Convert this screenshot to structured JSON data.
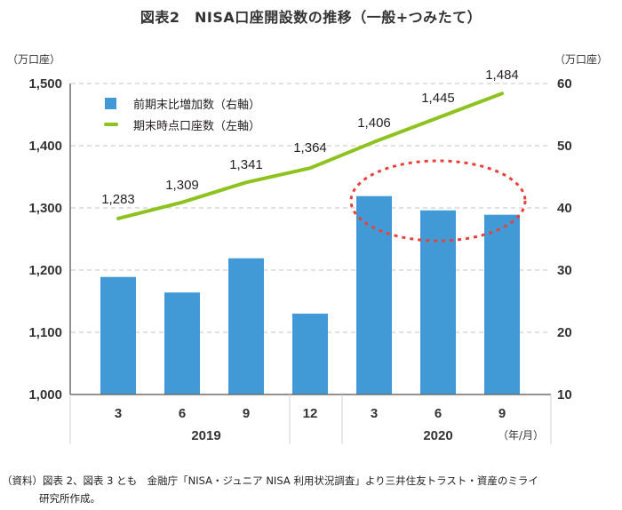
{
  "title": "図表2　NISA口座開設数の推移（一般+つみたて）",
  "axes": {
    "left_unit": "（万口座）",
    "right_unit": "（万口座）",
    "left_ticks": [
      "1,500",
      "1,400",
      "1,300",
      "1,200",
      "1,100",
      "1,000"
    ],
    "right_ticks": [
      "60",
      "50",
      "40",
      "30",
      "20",
      "10"
    ],
    "x_months": [
      "3",
      "6",
      "9",
      "12",
      "3",
      "6",
      "9"
    ],
    "x_years": [
      "2019",
      "2020"
    ],
    "x_unit": "（年/月）"
  },
  "legend": {
    "bar_label": "前期末比増加数（右軸）",
    "line_label": "期末時点口座数（左軸）"
  },
  "colors": {
    "bar": "#419ad6",
    "line": "#8dc21f",
    "highlight_ellipse": "#e8413a",
    "grid": "#d9d9d9",
    "axis": "#6d6d6d"
  },
  "data_labels": [
    "1,283",
    "1,309",
    "1,341",
    "1,364",
    "1,406",
    "1,445",
    "1,484"
  ],
  "footnote": {
    "line1": "（資料）図表 2、図表 3 とも　金融庁「NISA・ジュニア NISA 利用状況調査」より三井住友トラスト・資産のミライ",
    "line2": "研究所作成。"
  },
  "chart_data": {
    "type": "bar+line",
    "title": "図表2　NISA口座開設数の推移（一般+つみたて）",
    "categories": [
      "2019/3",
      "2019/6",
      "2019/9",
      "2019/12",
      "2020/3",
      "2020/6",
      "2020/9"
    ],
    "series": [
      {
        "name": "前期末比増加数（右軸）",
        "type": "bar",
        "axis": "right",
        "values": [
          28.9,
          26.4,
          31.9,
          23.0,
          41.9,
          39.6,
          38.9
        ]
      },
      {
        "name": "期末時点口座数（左軸）",
        "type": "line",
        "axis": "left",
        "values": [
          1283,
          1309,
          1341,
          1364,
          1406,
          1445,
          1484
        ]
      }
    ],
    "ylabel_left": "（万口座）",
    "ylabel_right": "（万口座）",
    "xlabel": "（年/月）",
    "ylim_left": [
      1000,
      1500
    ],
    "ylim_right": [
      10,
      60
    ],
    "grid": true,
    "legend_position": "upper-left",
    "annotations": [
      "red dotted ellipse highlighting 2020/3–2020/9 bars"
    ]
  }
}
